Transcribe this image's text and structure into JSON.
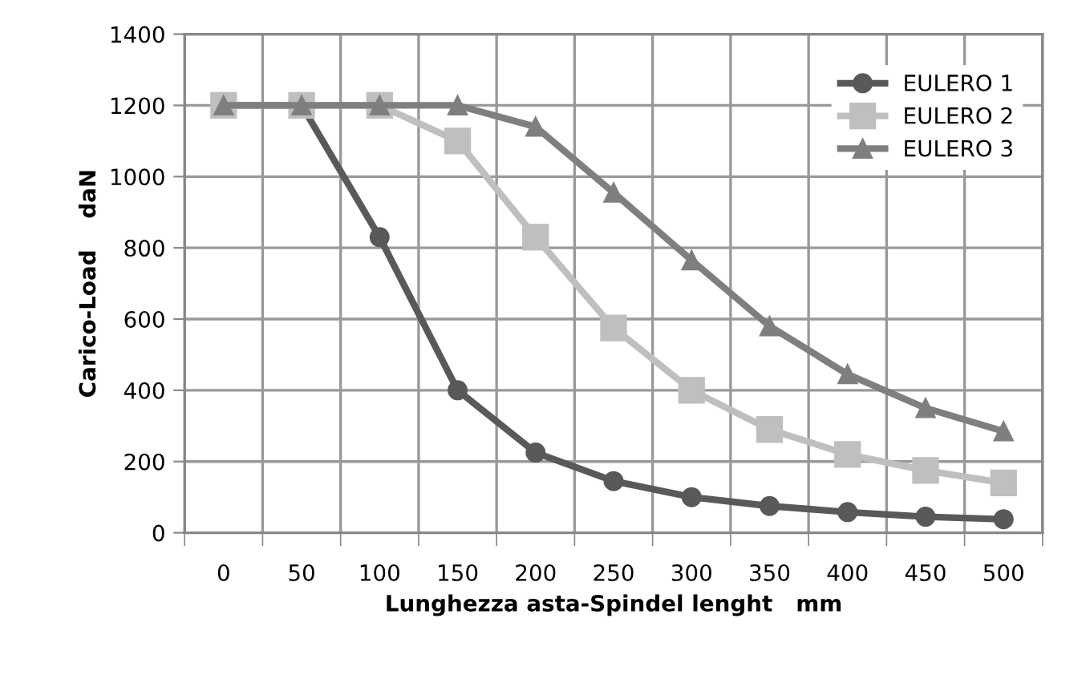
{
  "chart_data": {
    "type": "line",
    "xlabel": "Lunghezza asta-Spindel lenght   mm",
    "ylabel": "Carico-Load    daN",
    "categories": [
      "0",
      "50",
      "100",
      "150",
      "200",
      "250",
      "300",
      "350",
      "400",
      "450",
      "500"
    ],
    "series": [
      {
        "name": "EULERO 1",
        "color": "#595959",
        "marker": "circle",
        "values": [
          1200,
          1200,
          830,
          400,
          225,
          145,
          100,
          75,
          58,
          45,
          38
        ]
      },
      {
        "name": "EULERO 2",
        "color": "#bfbfbf",
        "marker": "square",
        "values": [
          1200,
          1200,
          1200,
          1100,
          830,
          575,
          400,
          290,
          220,
          175,
          140
        ]
      },
      {
        "name": "EULERO 3",
        "color": "#7f7f7f",
        "marker": "triangle",
        "values": [
          1200,
          1200,
          1200,
          1200,
          1140,
          955,
          765,
          580,
          445,
          350,
          285
        ]
      }
    ],
    "ylim": [
      0,
      1400
    ],
    "yticks": [
      0,
      200,
      400,
      600,
      800,
      1000,
      1200,
      1400
    ],
    "grid": true,
    "legend": "top right"
  }
}
